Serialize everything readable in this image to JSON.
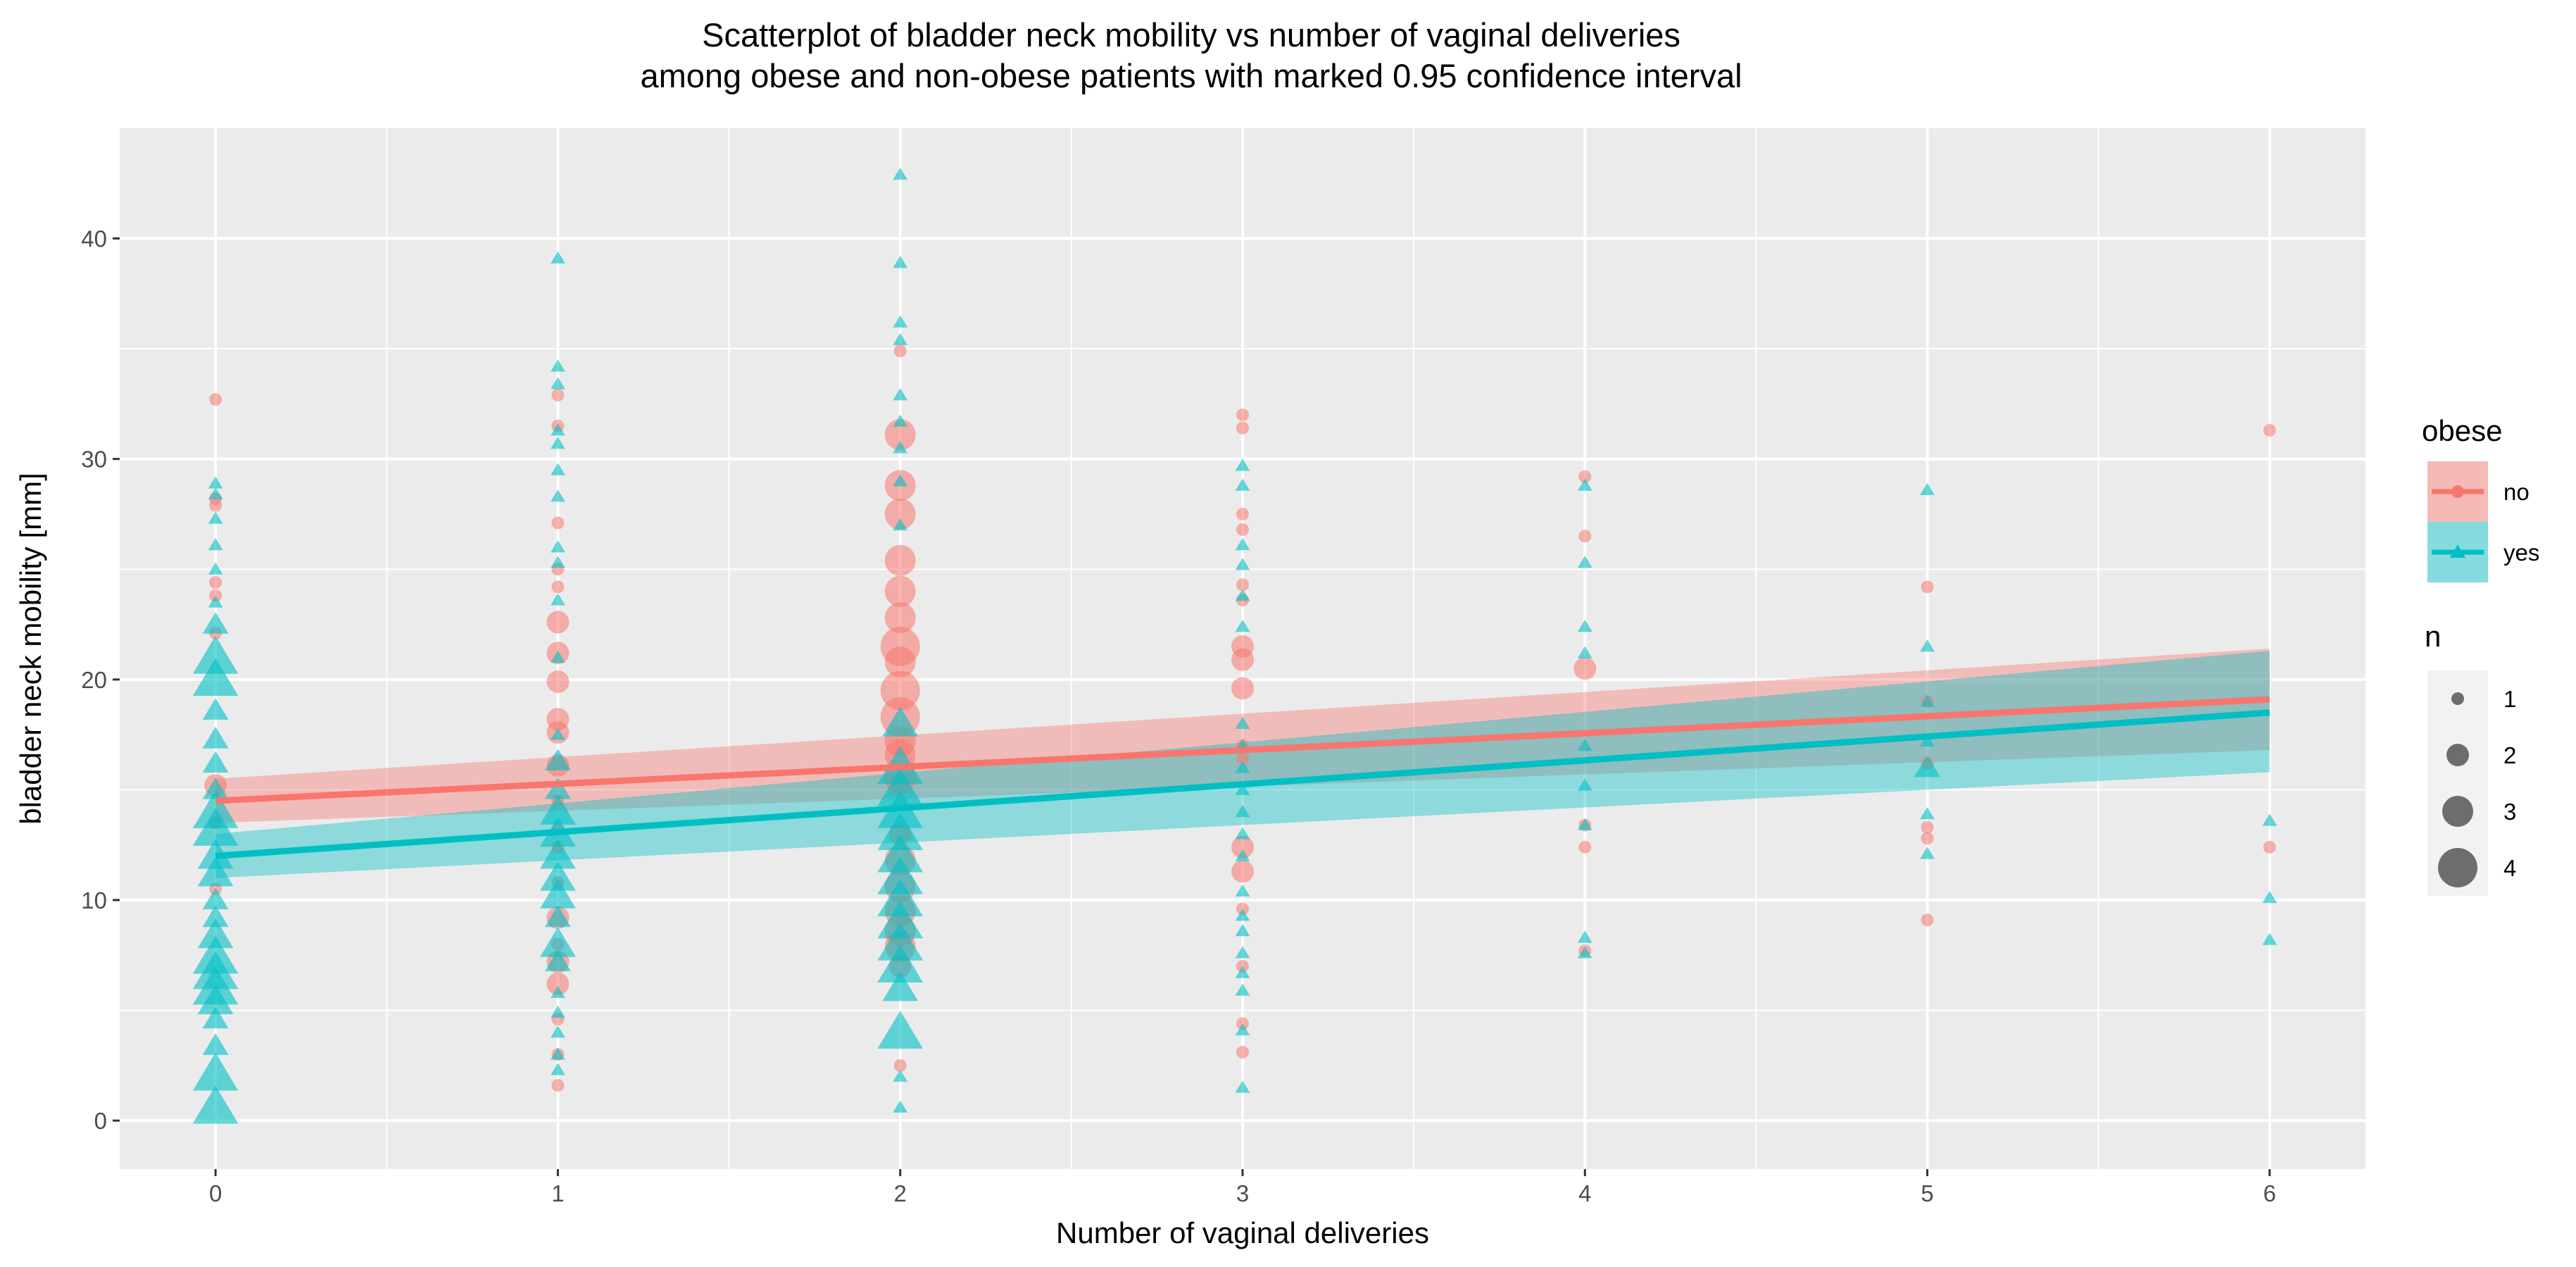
{
  "chart_data": {
    "type": "scatter",
    "title": [
      "Scatterplot of bladder neck mobility vs number of vaginal deliveries",
      "among obese and non-obese patients with marked 0.95 confidence interval"
    ],
    "xlabel": "Number of vaginal deliveries",
    "ylabel": "bladder neck mobility [mm]",
    "xlim": [
      -0.28,
      6.28
    ],
    "ylim": [
      -2.2,
      45
    ],
    "x_ticks": [
      0,
      1,
      2,
      3,
      4,
      5,
      6
    ],
    "y_ticks": [
      0,
      10,
      20,
      30,
      40
    ],
    "grid": true,
    "legend_placement": "right",
    "legend_groups": [
      {
        "title": "obese",
        "entries": [
          {
            "label": "no",
            "series": "no"
          },
          {
            "label": "yes",
            "series": "yes"
          }
        ]
      },
      {
        "title": "n",
        "entries": [
          {
            "label": "1",
            "n": 1
          },
          {
            "label": "2",
            "n": 2
          },
          {
            "label": "3",
            "n": 3
          },
          {
            "label": "4",
            "n": 4
          }
        ]
      }
    ],
    "series": [
      {
        "name": "no",
        "marker": "circle",
        "color": "#F8766D",
        "fit": {
          "x": [
            0,
            6
          ],
          "y": [
            14.5,
            19.1
          ]
        },
        "ci": {
          "x": [
            0,
            6
          ],
          "lower": [
            13.5,
            16.8
          ],
          "upper": [
            15.5,
            21.4
          ]
        },
        "points": [
          {
            "x": 0,
            "y": 32.7,
            "n": 1
          },
          {
            "x": 0,
            "y": 28.2,
            "n": 1
          },
          {
            "x": 0,
            "y": 27.9,
            "n": 1
          },
          {
            "x": 0,
            "y": 24.4,
            "n": 1
          },
          {
            "x": 0,
            "y": 23.8,
            "n": 1
          },
          {
            "x": 0,
            "y": 22.1,
            "n": 1
          },
          {
            "x": 0,
            "y": 15.2,
            "n": 2
          },
          {
            "x": 0,
            "y": 13.5,
            "n": 1
          },
          {
            "x": 0,
            "y": 10.5,
            "n": 1
          },
          {
            "x": 1,
            "y": 32.9,
            "n": 1
          },
          {
            "x": 1,
            "y": 31.5,
            "n": 1
          },
          {
            "x": 1,
            "y": 27.1,
            "n": 1
          },
          {
            "x": 1,
            "y": 25.0,
            "n": 1
          },
          {
            "x": 1,
            "y": 24.2,
            "n": 1
          },
          {
            "x": 1,
            "y": 22.6,
            "n": 2
          },
          {
            "x": 1,
            "y": 21.2,
            "n": 2
          },
          {
            "x": 1,
            "y": 19.9,
            "n": 2
          },
          {
            "x": 1,
            "y": 18.2,
            "n": 2
          },
          {
            "x": 1,
            "y": 17.6,
            "n": 2
          },
          {
            "x": 1,
            "y": 16.1,
            "n": 2
          },
          {
            "x": 1,
            "y": 14.5,
            "n": 1
          },
          {
            "x": 1,
            "y": 13.2,
            "n": 1
          },
          {
            "x": 1,
            "y": 12.4,
            "n": 1
          },
          {
            "x": 1,
            "y": 10.8,
            "n": 1
          },
          {
            "x": 1,
            "y": 9.2,
            "n": 2
          },
          {
            "x": 1,
            "y": 8.0,
            "n": 1
          },
          {
            "x": 1,
            "y": 7.2,
            "n": 2
          },
          {
            "x": 1,
            "y": 6.2,
            "n": 2
          },
          {
            "x": 1,
            "y": 4.6,
            "n": 1
          },
          {
            "x": 1,
            "y": 3.0,
            "n": 1
          },
          {
            "x": 1,
            "y": 1.6,
            "n": 1
          },
          {
            "x": 2,
            "y": 34.9,
            "n": 1
          },
          {
            "x": 2,
            "y": 31.1,
            "n": 3
          },
          {
            "x": 2,
            "y": 28.8,
            "n": 3
          },
          {
            "x": 2,
            "y": 27.5,
            "n": 3
          },
          {
            "x": 2,
            "y": 25.4,
            "n": 3
          },
          {
            "x": 2,
            "y": 24.0,
            "n": 3
          },
          {
            "x": 2,
            "y": 22.8,
            "n": 3
          },
          {
            "x": 2,
            "y": 21.5,
            "n": 4
          },
          {
            "x": 2,
            "y": 20.8,
            "n": 3
          },
          {
            "x": 2,
            "y": 19.5,
            "n": 4
          },
          {
            "x": 2,
            "y": 18.3,
            "n": 4
          },
          {
            "x": 2,
            "y": 17.2,
            "n": 3
          },
          {
            "x": 2,
            "y": 16.6,
            "n": 3
          },
          {
            "x": 2,
            "y": 15.5,
            "n": 3
          },
          {
            "x": 2,
            "y": 13.0,
            "n": 2
          },
          {
            "x": 2,
            "y": 11.8,
            "n": 3
          },
          {
            "x": 2,
            "y": 10.6,
            "n": 3
          },
          {
            "x": 2,
            "y": 9.5,
            "n": 3
          },
          {
            "x": 2,
            "y": 8.6,
            "n": 3
          },
          {
            "x": 2,
            "y": 7.9,
            "n": 3
          },
          {
            "x": 2,
            "y": 7.0,
            "n": 2
          },
          {
            "x": 2,
            "y": 2.5,
            "n": 1
          },
          {
            "x": 3,
            "y": 32.0,
            "n": 1
          },
          {
            "x": 3,
            "y": 31.4,
            "n": 1
          },
          {
            "x": 3,
            "y": 27.5,
            "n": 1
          },
          {
            "x": 3,
            "y": 26.8,
            "n": 1
          },
          {
            "x": 3,
            "y": 24.3,
            "n": 1
          },
          {
            "x": 3,
            "y": 23.6,
            "n": 1
          },
          {
            "x": 3,
            "y": 21.5,
            "n": 2
          },
          {
            "x": 3,
            "y": 20.9,
            "n": 2
          },
          {
            "x": 3,
            "y": 19.6,
            "n": 2
          },
          {
            "x": 3,
            "y": 17.0,
            "n": 1
          },
          {
            "x": 3,
            "y": 16.4,
            "n": 1
          },
          {
            "x": 3,
            "y": 12.4,
            "n": 2
          },
          {
            "x": 3,
            "y": 11.3,
            "n": 2
          },
          {
            "x": 3,
            "y": 9.6,
            "n": 1
          },
          {
            "x": 3,
            "y": 7.0,
            "n": 1
          },
          {
            "x": 3,
            "y": 4.4,
            "n": 1
          },
          {
            "x": 3,
            "y": 3.1,
            "n": 1
          },
          {
            "x": 4,
            "y": 29.2,
            "n": 1
          },
          {
            "x": 4,
            "y": 26.5,
            "n": 1
          },
          {
            "x": 4,
            "y": 20.5,
            "n": 2
          },
          {
            "x": 4,
            "y": 13.4,
            "n": 1
          },
          {
            "x": 4,
            "y": 12.4,
            "n": 1
          },
          {
            "x": 4,
            "y": 7.7,
            "n": 1
          },
          {
            "x": 5,
            "y": 24.2,
            "n": 1
          },
          {
            "x": 5,
            "y": 19.0,
            "n": 1
          },
          {
            "x": 5,
            "y": 16.2,
            "n": 1
          },
          {
            "x": 5,
            "y": 13.3,
            "n": 1
          },
          {
            "x": 5,
            "y": 12.8,
            "n": 1
          },
          {
            "x": 5,
            "y": 9.1,
            "n": 1
          },
          {
            "x": 6,
            "y": 31.3,
            "n": 1
          },
          {
            "x": 6,
            "y": 12.4,
            "n": 1
          }
        ]
      },
      {
        "name": "yes",
        "marker": "triangle",
        "color": "#00BFC4",
        "fit": {
          "x": [
            0,
            6
          ],
          "y": [
            12.0,
            18.5
          ]
        },
        "ci": {
          "x": [
            0,
            6
          ],
          "lower": [
            11.0,
            15.8
          ],
          "upper": [
            13.0,
            21.3
          ]
        },
        "points": [
          {
            "x": 0,
            "y": 28.9,
            "n": 1
          },
          {
            "x": 0,
            "y": 28.4,
            "n": 1
          },
          {
            "x": 0,
            "y": 27.3,
            "n": 1
          },
          {
            "x": 0,
            "y": 26.1,
            "n": 1
          },
          {
            "x": 0,
            "y": 25.0,
            "n": 1
          },
          {
            "x": 0,
            "y": 23.5,
            "n": 1
          },
          {
            "x": 0,
            "y": 22.5,
            "n": 2
          },
          {
            "x": 0,
            "y": 21.0,
            "n": 4
          },
          {
            "x": 0,
            "y": 20.0,
            "n": 4
          },
          {
            "x": 0,
            "y": 18.6,
            "n": 2
          },
          {
            "x": 0,
            "y": 17.3,
            "n": 2
          },
          {
            "x": 0,
            "y": 16.2,
            "n": 2
          },
          {
            "x": 0,
            "y": 15.0,
            "n": 2
          },
          {
            "x": 0,
            "y": 14.0,
            "n": 4
          },
          {
            "x": 0,
            "y": 13.2,
            "n": 4
          },
          {
            "x": 0,
            "y": 12.0,
            "n": 3
          },
          {
            "x": 0,
            "y": 11.2,
            "n": 3
          },
          {
            "x": 0,
            "y": 10.0,
            "n": 2
          },
          {
            "x": 0,
            "y": 9.2,
            "n": 2
          },
          {
            "x": 0,
            "y": 8.4,
            "n": 3
          },
          {
            "x": 0,
            "y": 7.4,
            "n": 4
          },
          {
            "x": 0,
            "y": 6.7,
            "n": 4
          },
          {
            "x": 0,
            "y": 6.0,
            "n": 4
          },
          {
            "x": 0,
            "y": 5.4,
            "n": 3
          },
          {
            "x": 0,
            "y": 4.6,
            "n": 2
          },
          {
            "x": 0,
            "y": 3.4,
            "n": 2
          },
          {
            "x": 0,
            "y": 2.1,
            "n": 4
          },
          {
            "x": 0,
            "y": 0.6,
            "n": 4
          },
          {
            "x": 1,
            "y": 39.1,
            "n": 1
          },
          {
            "x": 1,
            "y": 34.2,
            "n": 1
          },
          {
            "x": 1,
            "y": 33.4,
            "n": 1
          },
          {
            "x": 1,
            "y": 31.3,
            "n": 1
          },
          {
            "x": 1,
            "y": 30.7,
            "n": 1
          },
          {
            "x": 1,
            "y": 29.5,
            "n": 1
          },
          {
            "x": 1,
            "y": 28.3,
            "n": 1
          },
          {
            "x": 1,
            "y": 26.0,
            "n": 1
          },
          {
            "x": 1,
            "y": 25.3,
            "n": 1
          },
          {
            "x": 1,
            "y": 23.6,
            "n": 1
          },
          {
            "x": 1,
            "y": 21.0,
            "n": 1
          },
          {
            "x": 1,
            "y": 17.5,
            "n": 1
          },
          {
            "x": 1,
            "y": 16.3,
            "n": 2
          },
          {
            "x": 1,
            "y": 15.0,
            "n": 2
          },
          {
            "x": 1,
            "y": 14.0,
            "n": 3
          },
          {
            "x": 1,
            "y": 13.0,
            "n": 3
          },
          {
            "x": 1,
            "y": 12.0,
            "n": 3
          },
          {
            "x": 1,
            "y": 11.0,
            "n": 3
          },
          {
            "x": 1,
            "y": 10.2,
            "n": 3
          },
          {
            "x": 1,
            "y": 9.2,
            "n": 2
          },
          {
            "x": 1,
            "y": 8.0,
            "n": 3
          },
          {
            "x": 1,
            "y": 7.2,
            "n": 2
          },
          {
            "x": 1,
            "y": 5.8,
            "n": 1
          },
          {
            "x": 1,
            "y": 4.9,
            "n": 1
          },
          {
            "x": 1,
            "y": 4.0,
            "n": 1
          },
          {
            "x": 1,
            "y": 3.0,
            "n": 1
          },
          {
            "x": 1,
            "y": 2.3,
            "n": 1
          },
          {
            "x": 2,
            "y": 42.9,
            "n": 1
          },
          {
            "x": 2,
            "y": 38.9,
            "n": 1
          },
          {
            "x": 2,
            "y": 36.2,
            "n": 1
          },
          {
            "x": 2,
            "y": 35.4,
            "n": 1
          },
          {
            "x": 2,
            "y": 32.9,
            "n": 1
          },
          {
            "x": 2,
            "y": 31.7,
            "n": 1
          },
          {
            "x": 2,
            "y": 30.5,
            "n": 1
          },
          {
            "x": 2,
            "y": 29.0,
            "n": 1
          },
          {
            "x": 2,
            "y": 27.0,
            "n": 1
          },
          {
            "x": 2,
            "y": 18.0,
            "n": 3
          },
          {
            "x": 2,
            "y": 16.0,
            "n": 4
          },
          {
            "x": 2,
            "y": 15.0,
            "n": 4
          },
          {
            "x": 2,
            "y": 14.0,
            "n": 4
          },
          {
            "x": 2,
            "y": 13.0,
            "n": 4
          },
          {
            "x": 2,
            "y": 12.0,
            "n": 4
          },
          {
            "x": 2,
            "y": 11.0,
            "n": 4
          },
          {
            "x": 2,
            "y": 10.0,
            "n": 4
          },
          {
            "x": 2,
            "y": 9.0,
            "n": 4
          },
          {
            "x": 2,
            "y": 8.0,
            "n": 4
          },
          {
            "x": 2,
            "y": 7.0,
            "n": 4
          },
          {
            "x": 2,
            "y": 6.0,
            "n": 3
          },
          {
            "x": 2,
            "y": 4.0,
            "n": 4
          },
          {
            "x": 2,
            "y": 2.0,
            "n": 1
          },
          {
            "x": 2,
            "y": 0.6,
            "n": 1
          },
          {
            "x": 3,
            "y": 29.7,
            "n": 1
          },
          {
            "x": 3,
            "y": 28.8,
            "n": 1
          },
          {
            "x": 3,
            "y": 26.1,
            "n": 1
          },
          {
            "x": 3,
            "y": 25.2,
            "n": 1
          },
          {
            "x": 3,
            "y": 23.8,
            "n": 1
          },
          {
            "x": 3,
            "y": 22.4,
            "n": 1
          },
          {
            "x": 3,
            "y": 18.0,
            "n": 1
          },
          {
            "x": 3,
            "y": 17.0,
            "n": 1
          },
          {
            "x": 3,
            "y": 16.0,
            "n": 1
          },
          {
            "x": 3,
            "y": 15.0,
            "n": 1
          },
          {
            "x": 3,
            "y": 14.0,
            "n": 1
          },
          {
            "x": 3,
            "y": 13.0,
            "n": 1
          },
          {
            "x": 3,
            "y": 12.0,
            "n": 1
          },
          {
            "x": 3,
            "y": 10.4,
            "n": 1
          },
          {
            "x": 3,
            "y": 9.3,
            "n": 1
          },
          {
            "x": 3,
            "y": 8.6,
            "n": 1
          },
          {
            "x": 3,
            "y": 7.6,
            "n": 1
          },
          {
            "x": 3,
            "y": 6.7,
            "n": 1
          },
          {
            "x": 3,
            "y": 5.9,
            "n": 1
          },
          {
            "x": 3,
            "y": 4.1,
            "n": 1
          },
          {
            "x": 3,
            "y": 1.5,
            "n": 1
          },
          {
            "x": 4,
            "y": 28.8,
            "n": 1
          },
          {
            "x": 4,
            "y": 25.3,
            "n": 1
          },
          {
            "x": 4,
            "y": 22.4,
            "n": 1
          },
          {
            "x": 4,
            "y": 21.2,
            "n": 1
          },
          {
            "x": 4,
            "y": 17.0,
            "n": 1
          },
          {
            "x": 4,
            "y": 15.2,
            "n": 1
          },
          {
            "x": 4,
            "y": 13.4,
            "n": 1
          },
          {
            "x": 4,
            "y": 8.3,
            "n": 1
          },
          {
            "x": 4,
            "y": 7.6,
            "n": 1
          },
          {
            "x": 5,
            "y": 28.6,
            "n": 1
          },
          {
            "x": 5,
            "y": 21.5,
            "n": 1
          },
          {
            "x": 5,
            "y": 19.0,
            "n": 1
          },
          {
            "x": 5,
            "y": 17.2,
            "n": 1
          },
          {
            "x": 5,
            "y": 16.0,
            "n": 2
          },
          {
            "x": 5,
            "y": 13.9,
            "n": 1
          },
          {
            "x": 5,
            "y": 12.1,
            "n": 1
          },
          {
            "x": 6,
            "y": 13.6,
            "n": 1
          },
          {
            "x": 6,
            "y": 10.1,
            "n": 1
          },
          {
            "x": 6,
            "y": 8.2,
            "n": 1
          }
        ]
      }
    ]
  }
}
